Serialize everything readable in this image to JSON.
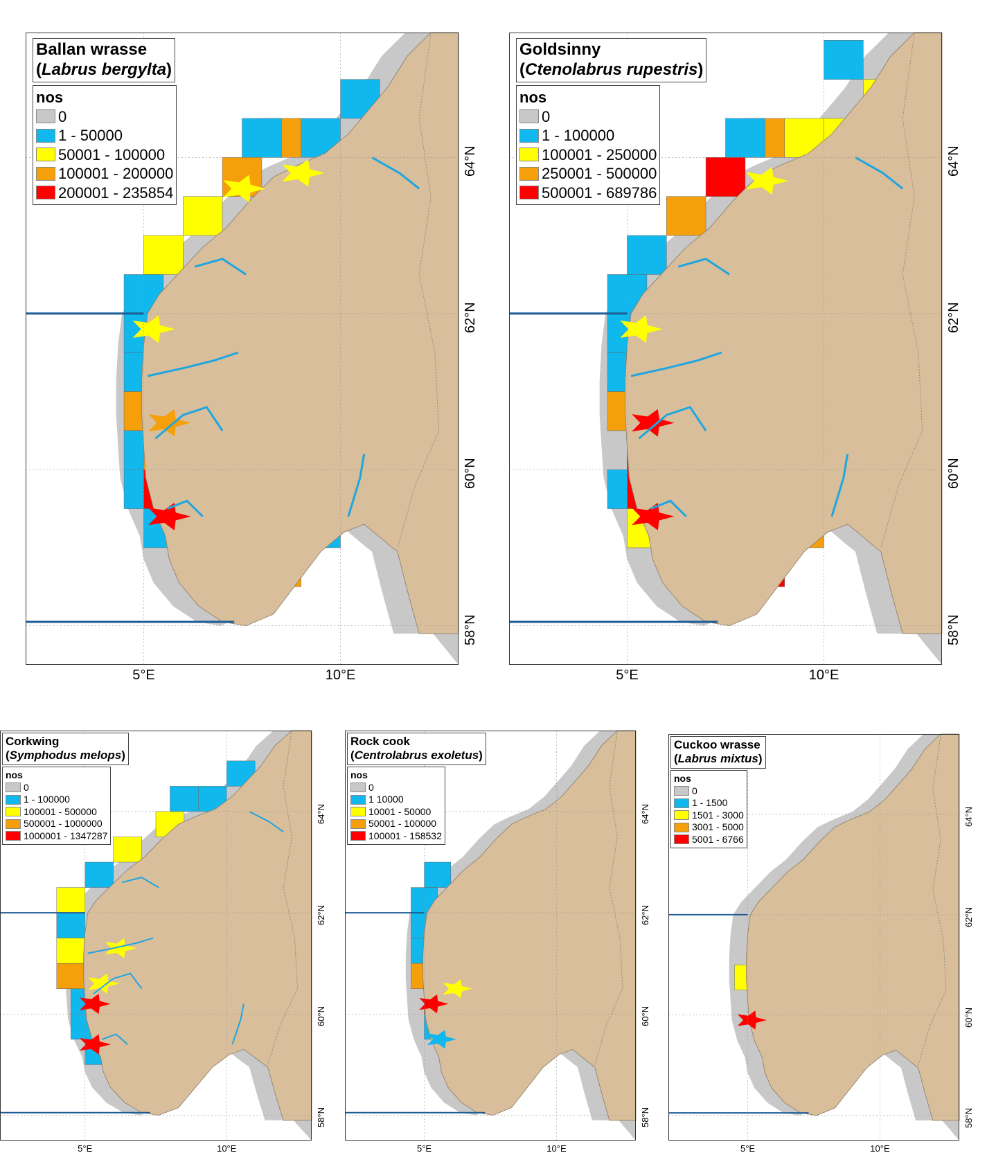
{
  "colors": {
    "land": "#D8BE9A",
    "sea": "#FFFFFF",
    "zero": "#C8C8C8",
    "c1": "#10B8EE",
    "c2": "#FFFF00",
    "c3": "#F5A00A",
    "c4": "#FF0000",
    "river": "#1EA6E0",
    "line": "#1E5C96",
    "frame": "#333333"
  },
  "legend_header": "nos",
  "lat_labels": [
    "64°N",
    "62°N",
    "60°N",
    "58°N"
  ],
  "lon_labels": [
    "5°E",
    "10°E"
  ],
  "maps": [
    {
      "common": "Ballan wrasse",
      "scientific": "Labrus bergylta",
      "classes": [
        "0",
        "1 - 50000",
        "50001 - 100000",
        "100001 - 200000",
        "200001 - 235854"
      ],
      "cells": [
        [
          10,
          64.5,
          1
        ],
        [
          8,
          64,
          3
        ],
        [
          9,
          64,
          1
        ],
        [
          7.5,
          64,
          1
        ],
        [
          7,
          63.5,
          3
        ],
        [
          6,
          63,
          2
        ],
        [
          5,
          62.5,
          2
        ],
        [
          4.5,
          62,
          1
        ],
        [
          4.5,
          61.5,
          1
        ],
        [
          4.5,
          61,
          1
        ],
        [
          4.5,
          60.5,
          3
        ],
        [
          4.5,
          60,
          1
        ],
        [
          5,
          60,
          3
        ],
        [
          4.5,
          59.5,
          1
        ],
        [
          5,
          59.5,
          4
        ],
        [
          5,
          59,
          1
        ],
        [
          6,
          58.5,
          1
        ],
        [
          8,
          58.5,
          3
        ],
        [
          9,
          59,
          1
        ]
      ],
      "rivers": 1,
      "fjords": [
        [
          9,
          63.8,
          2,
          2
        ],
        [
          7.5,
          63.6,
          2,
          2
        ],
        [
          5.6,
          60.6,
          3,
          3
        ],
        [
          5.6,
          59.4,
          4,
          4
        ],
        [
          5.2,
          61.8,
          2,
          2
        ]
      ]
    },
    {
      "common": "Goldsinny",
      "scientific": "Ctenolabrus rupestris",
      "classes": [
        "0",
        "1 - 100000",
        "100001 - 250000",
        "250001 - 500000",
        "500001 - 689786"
      ],
      "cells": [
        [
          10,
          65,
          1
        ],
        [
          11,
          64.5,
          2
        ],
        [
          10,
          64,
          2
        ],
        [
          9,
          64,
          2
        ],
        [
          8,
          64,
          3
        ],
        [
          7.5,
          64,
          1
        ],
        [
          7,
          63.5,
          4
        ],
        [
          6,
          63,
          3
        ],
        [
          5,
          62.5,
          1
        ],
        [
          4.5,
          62,
          1
        ],
        [
          4.5,
          61.5,
          1
        ],
        [
          4.5,
          61,
          1
        ],
        [
          4.5,
          60.5,
          3
        ],
        [
          4.5,
          59.5,
          1
        ],
        [
          5,
          60,
          4
        ],
        [
          5,
          59.5,
          4
        ],
        [
          5,
          59,
          2
        ],
        [
          6,
          58.5,
          3
        ],
        [
          8,
          58.5,
          4
        ],
        [
          9,
          59,
          3
        ],
        [
          10,
          59.5,
          3
        ]
      ],
      "rivers": 1,
      "fjords": [
        [
          5.6,
          60.6,
          4,
          4
        ],
        [
          5.6,
          59.4,
          4,
          4
        ],
        [
          5.3,
          61.8,
          2,
          2
        ],
        [
          8.5,
          63.7,
          2,
          2
        ]
      ]
    },
    {
      "common": "Corkwing",
      "scientific": "Symphodus melops",
      "classes": [
        "0",
        "1 - 100000",
        "100001 - 500000",
        "500001 - 1000000",
        "1000001 - 1347287"
      ],
      "cells": [
        [
          10,
          64.5,
          1
        ],
        [
          8,
          64,
          1
        ],
        [
          9,
          64,
          1
        ],
        [
          7.5,
          63.5,
          2
        ],
        [
          6,
          63,
          2
        ],
        [
          5,
          62.5,
          1
        ],
        [
          4,
          62,
          2
        ],
        [
          4,
          61.5,
          1
        ],
        [
          4,
          61,
          2
        ],
        [
          4,
          60.5,
          3
        ],
        [
          4.5,
          60,
          1
        ],
        [
          5,
          59.5,
          4
        ],
        [
          4.5,
          59.5,
          1
        ],
        [
          5,
          59,
          1
        ],
        [
          7,
          58.5,
          2
        ],
        [
          8,
          59,
          2
        ],
        [
          9,
          59.5,
          2
        ]
      ],
      "rivers": 1,
      "fjords": [
        [
          5.6,
          60.6,
          2,
          2
        ],
        [
          5.3,
          59.4,
          4,
          4
        ],
        [
          5.3,
          60.2,
          4,
          4
        ],
        [
          6.2,
          61.3,
          2,
          2
        ]
      ]
    },
    {
      "common": "Rock cook",
      "scientific": "Centrolabrus exoletus",
      "classes": [
        "0",
        "1   10000",
        "10001 - 50000",
        "50001 - 100000",
        "100001 - 158532"
      ],
      "cells": [
        [
          5,
          62.5,
          1
        ],
        [
          4.5,
          62,
          1
        ],
        [
          4.5,
          61.5,
          1
        ],
        [
          4.5,
          61,
          1
        ],
        [
          4.5,
          60.5,
          3
        ],
        [
          5,
          60,
          4
        ],
        [
          5,
          59.5,
          1
        ]
      ],
      "rivers": 0,
      "fjords": [
        [
          5.3,
          60.2,
          4,
          4
        ],
        [
          5.6,
          59.5,
          1,
          1
        ],
        [
          6.2,
          60.5,
          2,
          2
        ]
      ]
    },
    {
      "common": "Cuckoo wrasse",
      "scientific": "Labrus mixtus",
      "classes": [
        "0",
        "1 - 1500",
        "1501 - 3000",
        "3001 - 5000",
        "5001 - 6766"
      ],
      "cells": [
        [
          4.5,
          60.5,
          2
        ],
        [
          5,
          60.3,
          3
        ]
      ],
      "rivers": 0,
      "fjords": [
        [
          5.1,
          59.9,
          4,
          4
        ]
      ]
    }
  ]
}
